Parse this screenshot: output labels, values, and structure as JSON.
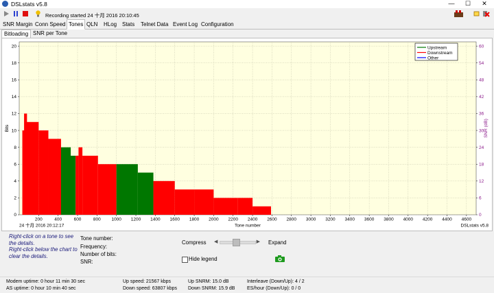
{
  "window": {
    "title": "DSLstats v5.8",
    "min": "—",
    "max": "☐",
    "close": "✕"
  },
  "toolbar": {
    "recording": "Recording started 24 十月 2016 20:10:45"
  },
  "tabs": [
    "SNR Margin",
    "Conn Speed",
    "Tones",
    "QLN",
    "HLog",
    "Stats",
    "Telnet Data",
    "Event Log",
    "Configuration"
  ],
  "subtabs": [
    "Bitloading",
    "SNR per Tone"
  ],
  "chart_data": {
    "type": "bar",
    "xlabel": "Tone number",
    "ylabel": "Bits",
    "y2label": "SNR (dB)",
    "xlim": [
      0,
      4700
    ],
    "ylim": [
      0,
      20.5
    ],
    "y2lim": [
      0,
      61.5
    ],
    "x_ticks": [
      200,
      400,
      600,
      800,
      1000,
      1200,
      1400,
      1600,
      1800,
      2000,
      2200,
      2400,
      2600,
      2800,
      3000,
      3200,
      3400,
      3600,
      3800,
      4000,
      4200,
      4400,
      4600
    ],
    "y_ticks": [
      0,
      2,
      4,
      6,
      8,
      10,
      12,
      14,
      16,
      18,
      20
    ],
    "y2_ticks": [
      0,
      6,
      12,
      18,
      24,
      30,
      36,
      42,
      48,
      54,
      60
    ],
    "timestamp": "24 十月 2016 20:12:17",
    "watermark": "DSLstats v5.8",
    "legend": {
      "position": "top-right",
      "items": [
        {
          "name": "Upstream",
          "color": "#007700"
        },
        {
          "name": "Downstream",
          "color": "#ff0000"
        },
        {
          "name": "Other",
          "color": "#0000ff"
        }
      ]
    },
    "plot_background": "#ffffe0",
    "grid": true,
    "series": [
      {
        "name": "Downstream",
        "color": "#ff0000",
        "blocks": [
          {
            "x0": 32,
            "x1": 60,
            "y": 10
          },
          {
            "x0": 50,
            "x1": 80,
            "y": 12
          },
          {
            "x0": 60,
            "x1": 200,
            "y": 11
          },
          {
            "x0": 200,
            "x1": 300,
            "y": 10
          },
          {
            "x0": 300,
            "x1": 430,
            "y": 9
          },
          {
            "x0": 380,
            "x1": 430,
            "y": 8
          }
        ]
      },
      {
        "name": "Upstream",
        "color": "#007700",
        "blocks": [
          {
            "x0": 430,
            "x1": 530,
            "y": 8
          },
          {
            "x0": 470,
            "x1": 580,
            "y": 7
          }
        ]
      },
      {
        "name": "Downstream",
        "color": "#ff0000",
        "blocks": [
          {
            "x0": 580,
            "x1": 610,
            "y": 7
          },
          {
            "x0": 610,
            "x1": 650,
            "y": 8
          },
          {
            "x0": 650,
            "x1": 810,
            "y": 7
          },
          {
            "x0": 810,
            "x1": 1000,
            "y": 6
          }
        ]
      },
      {
        "name": "Upstream",
        "color": "#007700",
        "blocks": [
          {
            "x0": 1000,
            "x1": 1220,
            "y": 6
          },
          {
            "x0": 1220,
            "x1": 1380,
            "y": 5
          }
        ]
      },
      {
        "name": "Downstream",
        "color": "#ff0000",
        "blocks": [
          {
            "x0": 1380,
            "x1": 1600,
            "y": 4
          },
          {
            "x0": 1600,
            "x1": 1800,
            "y": 3
          },
          {
            "x0": 1800,
            "x1": 2000,
            "y": 3
          },
          {
            "x0": 2000,
            "x1": 2250,
            "y": 2
          },
          {
            "x0": 2250,
            "x1": 2400,
            "y": 2
          },
          {
            "x0": 2400,
            "x1": 2590,
            "y": 1
          }
        ]
      }
    ]
  },
  "info": {
    "hint1": "Right-click on a tone to see the details.",
    "hint2": "Right-click below the chart to clear the details.",
    "tone_number": "Tone number:",
    "frequency": "Frequency:",
    "number_of_bits": "Number of bits:",
    "snr": "SNR:",
    "compress": "Compress",
    "expand": "Expand",
    "hide_legend": "Hide legend"
  },
  "status": {
    "modem_uptime": "Modem uptime:  0 hour 11 min 30 sec",
    "as_uptime": "AS uptime:  0 hour 10 min 40 sec",
    "up_speed": "Up speed: 21567 kbps",
    "down_speed": "Down speed: 63807 kbps",
    "up_snrm": "Up SNRM: 15.0 dB",
    "down_snrm": "Down SNRM: 15.9 dB",
    "interleave": "Interleave (Down/Up): 4 / 2",
    "es_hour": "ES/hour (Down/Up): 0 / 0"
  }
}
